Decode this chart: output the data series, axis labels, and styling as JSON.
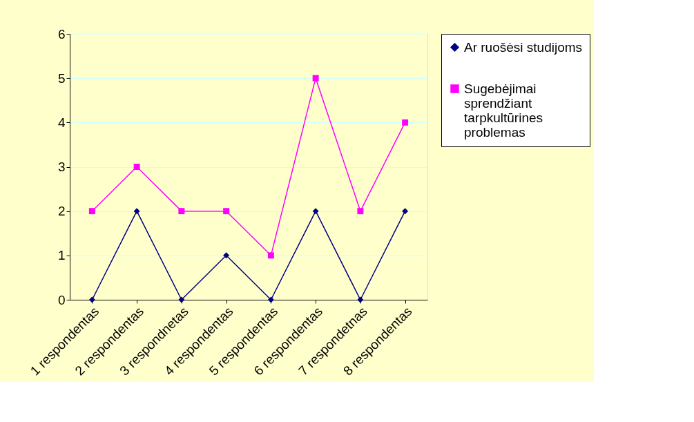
{
  "chart_data": {
    "type": "line",
    "categories": [
      "1 respondentas",
      "2 respondentas",
      "3 respondnetas",
      "4 respondentas",
      "5 respondentas",
      "6 respondentas",
      "7 respondetnas",
      "8 respondentas"
    ],
    "series": [
      {
        "name": "Ar ruošėsi studijoms",
        "color": "#000080",
        "marker": "diamond",
        "values": [
          0,
          2,
          0,
          1,
          0,
          2,
          0,
          2
        ]
      },
      {
        "name": "Sugebėjimai sprendžiant tarpkultūrines problemas",
        "color": "#ff00ff",
        "marker": "square",
        "values": [
          2,
          3,
          2,
          2,
          1,
          5,
          2,
          4
        ]
      }
    ],
    "ylim": [
      0,
      6
    ],
    "yticks": [
      0,
      1,
      2,
      3,
      4,
      5,
      6
    ],
    "grid": "y",
    "legend": "right",
    "line_style": "solid"
  }
}
